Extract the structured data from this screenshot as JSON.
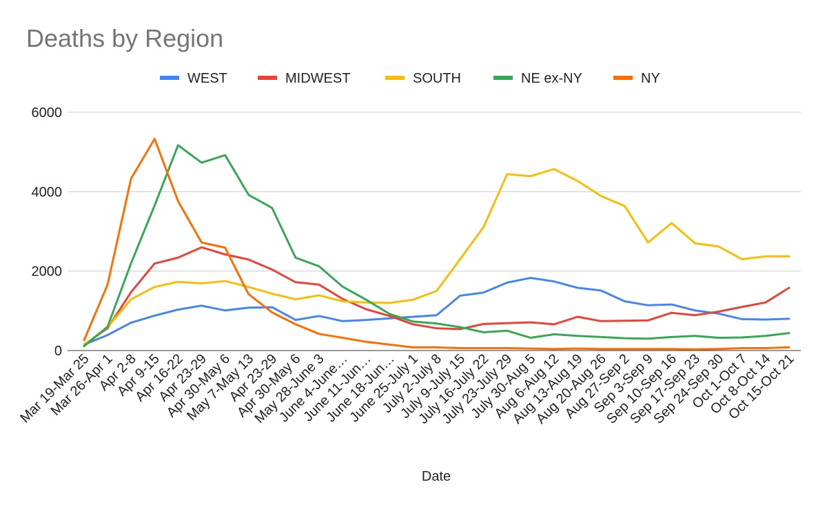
{
  "chart_data": {
    "type": "line",
    "title": "Deaths by Region",
    "xlabel": "Date",
    "ylabel": "",
    "ylim": [
      0,
      6000
    ],
    "yticks": [
      "0",
      "2000",
      "4000",
      "6000"
    ],
    "grid": true,
    "legend": "top",
    "categories": [
      "Mar 19-Mar 25",
      "Mar 26-Apr 1",
      "Apr 2-8",
      "Apr 9-15",
      "Apr 16-22",
      "Apr 23-29",
      "Apr 30-May 6",
      "May 7-May 13",
      "Apr 23-29",
      "Apr 30-May 6",
      "May 28-June 3",
      "June 4-June…",
      "June 11-Jun…",
      "June 18-Jun…",
      "June 25-July 1",
      "July 2-July 8",
      "July 9-July 15",
      "July 16-July 22",
      "July 23-July 29",
      "July 30-Aug 5",
      "Aug 6-Aug 12",
      "Aug 13-Aug 19",
      "Aug 20-Aug 26",
      "Aug 27-Sep 2",
      "Sep 3-Sep 9",
      "Sep 10-Sep 16",
      "Sep 17-Sep 23",
      "Sep 24-Sep 30",
      "Oct 1-Oct 7",
      "Oct 8-Oct 14",
      "Oct 15-Oct 21"
    ],
    "series": [
      {
        "name": "WEST",
        "color": "#4285f4",
        "values": [
          150,
          390,
          700,
          880,
          1030,
          1130,
          1010,
          1080,
          1090,
          770,
          870,
          740,
          770,
          810,
          850,
          890,
          1380,
          1460,
          1710,
          1830,
          1740,
          1580,
          1510,
          1240,
          1140,
          1160,
          1010,
          930,
          790,
          780,
          800
        ]
      },
      {
        "name": "MIDWEST",
        "color": "#ea4335",
        "values": [
          150,
          560,
          1470,
          2190,
          2340,
          2600,
          2420,
          2290,
          2040,
          1720,
          1660,
          1300,
          1040,
          870,
          660,
          560,
          540,
          670,
          690,
          710,
          660,
          850,
          740,
          750,
          760,
          950,
          890,
          980,
          1100,
          1210,
          1580
        ]
      },
      {
        "name": "SOUTH",
        "color": "#fbbc04",
        "values": [
          140,
          590,
          1290,
          1600,
          1730,
          1690,
          1750,
          1600,
          1430,
          1290,
          1390,
          1240,
          1210,
          1200,
          1280,
          1500,
          2300,
          3110,
          4440,
          4390,
          4570,
          4270,
          3890,
          3640,
          2720,
          3210,
          2700,
          2620,
          2300,
          2370,
          2370
        ]
      },
      {
        "name": "NE ex-NY",
        "color": "#34a853",
        "values": [
          110,
          600,
          2200,
          3650,
          5170,
          4730,
          4920,
          3920,
          3590,
          2340,
          2120,
          1610,
          1280,
          920,
          730,
          680,
          590,
          460,
          500,
          320,
          410,
          370,
          340,
          310,
          300,
          340,
          370,
          320,
          330,
          370,
          440
        ]
      },
      {
        "name": "NY",
        "color": "#ff6d01",
        "values": [
          260,
          1660,
          4330,
          5330,
          3760,
          2720,
          2590,
          1420,
          960,
          660,
          420,
          320,
          220,
          150,
          80,
          80,
          60,
          60,
          60,
          50,
          40,
          50,
          40,
          40,
          40,
          40,
          30,
          40,
          60,
          60,
          80
        ]
      }
    ]
  }
}
